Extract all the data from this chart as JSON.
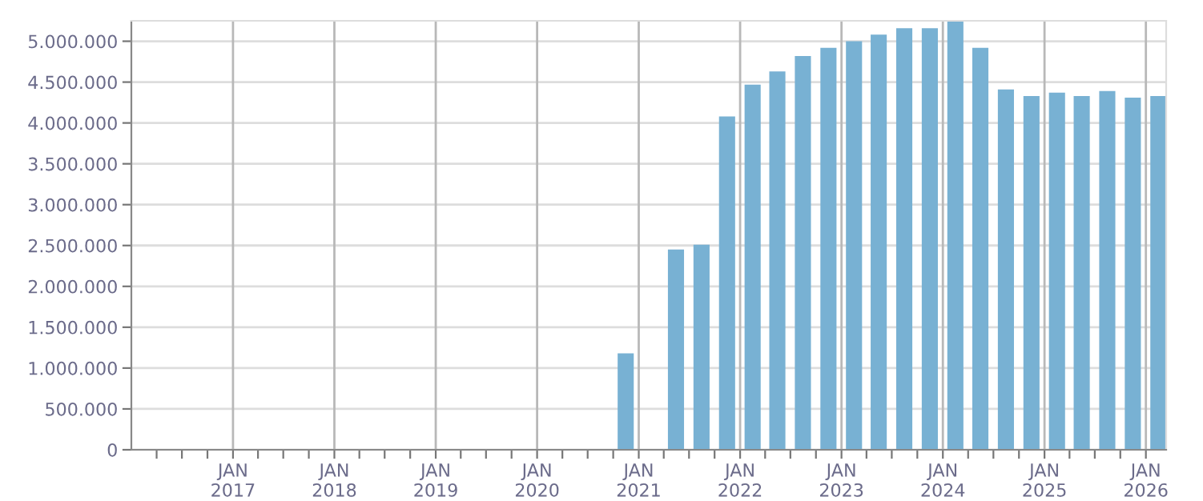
{
  "chart_data": {
    "type": "bar",
    "x": [
      "2020-11-15",
      "2021-02-15",
      "2021-05-15",
      "2021-08-15",
      "2021-11-15",
      "2022-02-15",
      "2022-05-15",
      "2022-08-15",
      "2022-11-15",
      "2023-02-15",
      "2023-05-15",
      "2023-08-15",
      "2023-11-15",
      "2024-02-15",
      "2024-05-15",
      "2024-08-15",
      "2024-11-15",
      "2025-02-15",
      "2025-05-15",
      "2025-08-15",
      "2025-11-15",
      "2026-02-15"
    ],
    "series": [
      {
        "color": "#78b1d3",
        "values": [
          1180000,
          null,
          2450000,
          2510000,
          4080000,
          4470000,
          4630000,
          4820000,
          4920000,
          5000000,
          5080000,
          5160000,
          5160000,
          5240000,
          4920000,
          4410000,
          4330000,
          4370000,
          4330000,
          4390000,
          4310000,
          4330000
        ]
      }
    ],
    "xlim": [
      "2016-01-01",
      "2026-03-15"
    ],
    "xticks": [
      {
        "value": "2016-04-01",
        "label": null
      },
      {
        "value": "2016-07-01",
        "label": null
      },
      {
        "value": "2016-10-01",
        "label": null
      },
      {
        "value": "2017-01-01",
        "label": "JAN\n2017"
      },
      {
        "value": "2017-04-01",
        "label": null
      },
      {
        "value": "2017-07-01",
        "label": null
      },
      {
        "value": "2017-10-01",
        "label": null
      },
      {
        "value": "2018-01-01",
        "label": "JAN\n2018"
      },
      {
        "value": "2018-04-01",
        "label": null
      },
      {
        "value": "2018-07-01",
        "label": null
      },
      {
        "value": "2018-10-01",
        "label": null
      },
      {
        "value": "2019-01-01",
        "label": "JAN\n2019"
      },
      {
        "value": "2019-04-01",
        "label": null
      },
      {
        "value": "2019-07-01",
        "label": null
      },
      {
        "value": "2019-10-01",
        "label": null
      },
      {
        "value": "2020-01-01",
        "label": "JAN\n2020"
      },
      {
        "value": "2020-04-01",
        "label": null
      },
      {
        "value": "2020-07-01",
        "label": null
      },
      {
        "value": "2020-10-01",
        "label": null
      },
      {
        "value": "2021-01-01",
        "label": "JAN\n2021"
      },
      {
        "value": "2021-04-01",
        "label": null
      },
      {
        "value": "2021-07-01",
        "label": null
      },
      {
        "value": "2021-10-01",
        "label": null
      },
      {
        "value": "2022-01-01",
        "label": "JAN\n2022"
      },
      {
        "value": "2022-04-01",
        "label": null
      },
      {
        "value": "2022-07-01",
        "label": null
      },
      {
        "value": "2022-10-01",
        "label": null
      },
      {
        "value": "2023-01-01",
        "label": "JAN\n2023"
      },
      {
        "value": "2023-04-01",
        "label": null
      },
      {
        "value": "2023-07-01",
        "label": null
      },
      {
        "value": "2023-10-01",
        "label": null
      },
      {
        "value": "2024-01-01",
        "label": "JAN\n2024"
      },
      {
        "value": "2024-04-01",
        "label": null
      },
      {
        "value": "2024-07-01",
        "label": null
      },
      {
        "value": "2024-10-01",
        "label": null
      },
      {
        "value": "2025-01-01",
        "label": "JAN\n2025"
      },
      {
        "value": "2025-04-01",
        "label": null
      },
      {
        "value": "2025-07-01",
        "label": null
      },
      {
        "value": "2025-10-01",
        "label": null
      },
      {
        "value": "2026-01-01",
        "label": "JAN\n2026"
      }
    ],
    "ylim": [
      0,
      5250000
    ],
    "yticks": [
      {
        "value": 0,
        "label": "0"
      },
      {
        "value": 500000,
        "label": "500.000"
      },
      {
        "value": 1000000,
        "label": "1.000.000"
      },
      {
        "value": 1500000,
        "label": "1.500.000"
      },
      {
        "value": 2000000,
        "label": "2.000.000"
      },
      {
        "value": 2500000,
        "label": "2.500.000"
      },
      {
        "value": 3000000,
        "label": "3.000.000"
      },
      {
        "value": 3500000,
        "label": "3.500.000"
      },
      {
        "value": 4000000,
        "label": "4.000.000"
      },
      {
        "value": 4500000,
        "label": "4.500.000"
      },
      {
        "value": 5000000,
        "label": "5.000.000"
      }
    ],
    "grid": true,
    "legend": false
  }
}
